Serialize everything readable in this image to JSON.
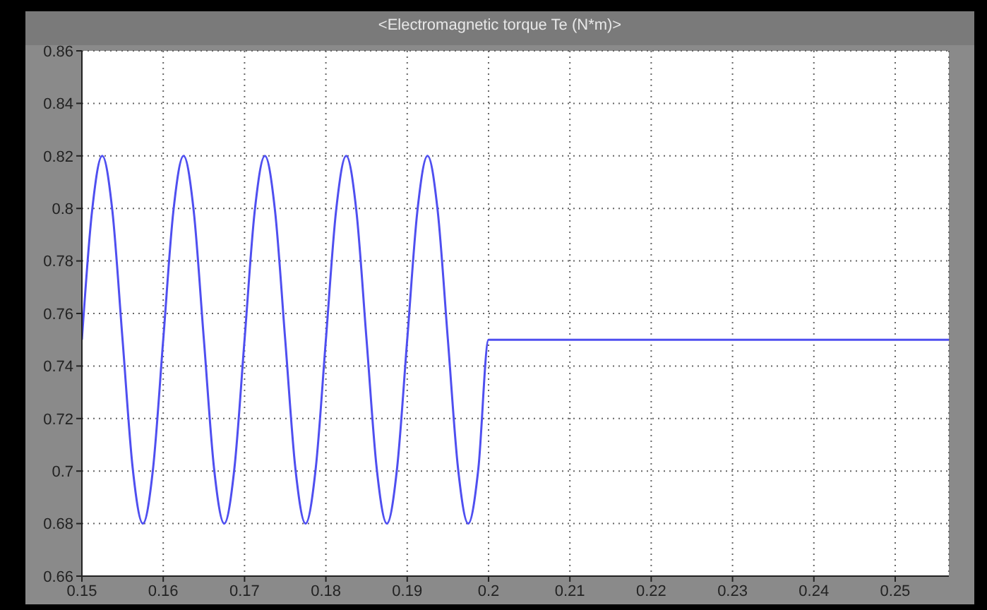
{
  "chart_data": {
    "type": "line",
    "title": "<Electromagnetic torque Te (N*m)>",
    "series": [
      {
        "color": "#4f4ff0",
        "x": [
          0.15,
          0.15125,
          0.1525,
          0.15375,
          0.155,
          0.15625,
          0.1575,
          0.15875,
          0.16,
          0.16125,
          0.1625,
          0.16375,
          0.165,
          0.16625,
          0.1675,
          0.16875,
          0.17,
          0.17125,
          0.1725,
          0.17375,
          0.175,
          0.17625,
          0.1775,
          0.17875,
          0.18,
          0.18125,
          0.1825,
          0.18375,
          0.185,
          0.18625,
          0.1875,
          0.18875,
          0.19,
          0.19125,
          0.1925,
          0.19375,
          0.195,
          0.19625,
          0.1975,
          0.19875,
          0.2,
          0.2566
        ],
        "values": [
          0.75,
          0.799,
          0.82,
          0.799,
          0.75,
          0.701,
          0.68,
          0.701,
          0.75,
          0.799,
          0.82,
          0.799,
          0.75,
          0.701,
          0.68,
          0.701,
          0.75,
          0.799,
          0.82,
          0.799,
          0.75,
          0.701,
          0.68,
          0.701,
          0.75,
          0.799,
          0.82,
          0.799,
          0.75,
          0.701,
          0.68,
          0.701,
          0.75,
          0.799,
          0.82,
          0.799,
          0.75,
          0.701,
          0.68,
          0.701,
          0.75,
          0.75
        ]
      }
    ],
    "xlim": [
      0.15,
      0.2566
    ],
    "xticks": [
      0.15,
      0.16,
      0.17,
      0.18,
      0.19,
      0.2,
      0.21,
      0.22,
      0.23,
      0.24,
      0.25
    ],
    "ylim": [
      0.66,
      0.86
    ],
    "yticks": [
      0.66,
      0.68,
      0.7,
      0.72,
      0.74,
      0.76,
      0.78,
      0.8,
      0.82,
      0.84,
      0.86
    ],
    "grid": true,
    "marker": "none",
    "line_style": "solid"
  }
}
